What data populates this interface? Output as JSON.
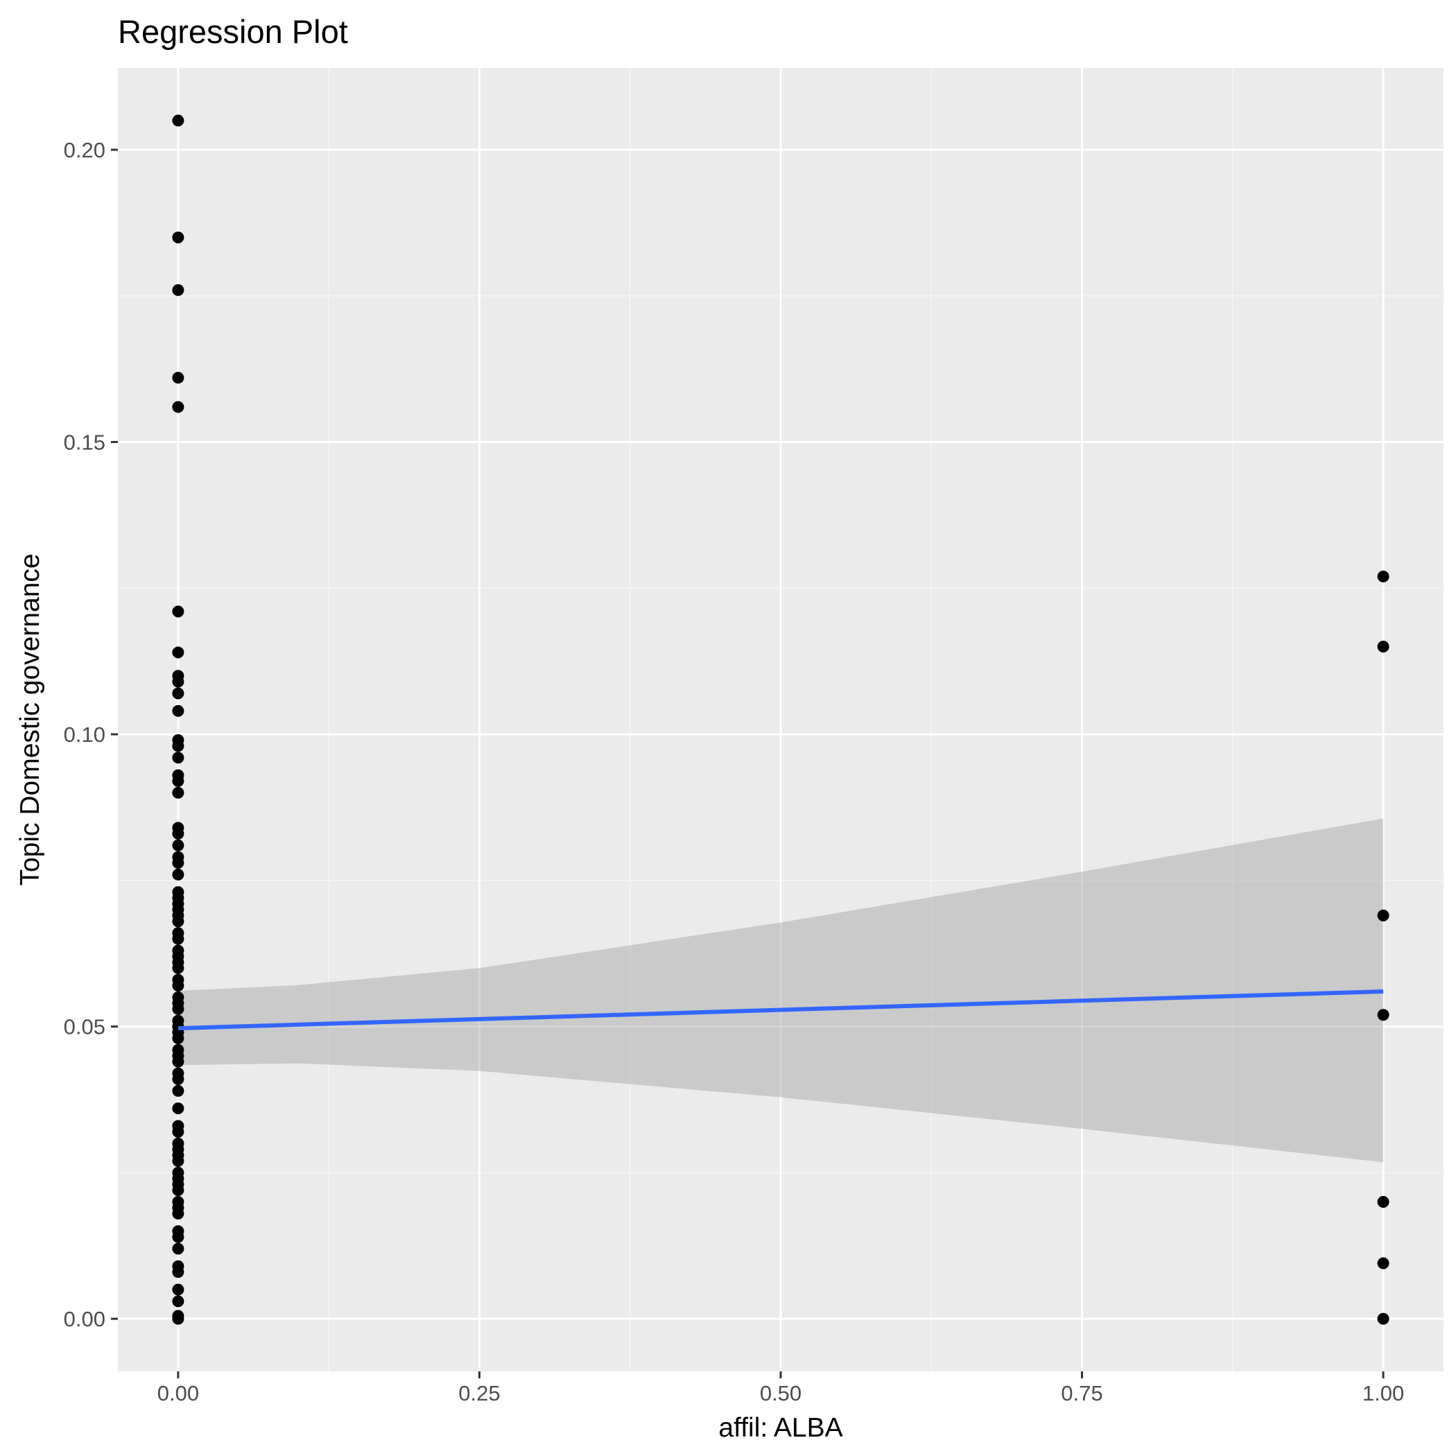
{
  "chart_data": {
    "type": "scatter",
    "title": "Regression Plot",
    "xlabel": "affil: ALBA",
    "ylabel": "Topic Domestic governance",
    "xlim": [
      -0.05,
      1.05
    ],
    "ylim": [
      -0.009,
      0.214
    ],
    "x_ticks": [
      0,
      0.25,
      0.5,
      0.75,
      1
    ],
    "x_tick_labels": [
      "0.00",
      "0.25",
      "0.50",
      "0.75",
      "1.00"
    ],
    "y_ticks": [
      0,
      0.05,
      0.1,
      0.15,
      0.2
    ],
    "y_tick_labels": [
      "0.00",
      "0.05",
      "0.10",
      "0.15",
      "0.20"
    ],
    "grid": true,
    "points": [
      {
        "x": 0,
        "y": 0.205
      },
      {
        "x": 0,
        "y": 0.185
      },
      {
        "x": 0,
        "y": 0.176
      },
      {
        "x": 0,
        "y": 0.161
      },
      {
        "x": 0,
        "y": 0.156
      },
      {
        "x": 0,
        "y": 0.121
      },
      {
        "x": 0,
        "y": 0.114
      },
      {
        "x": 0,
        "y": 0.11
      },
      {
        "x": 0,
        "y": 0.109
      },
      {
        "x": 0,
        "y": 0.107
      },
      {
        "x": 0,
        "y": 0.104
      },
      {
        "x": 0,
        "y": 0.099
      },
      {
        "x": 0,
        "y": 0.098
      },
      {
        "x": 0,
        "y": 0.096
      },
      {
        "x": 0,
        "y": 0.093
      },
      {
        "x": 0,
        "y": 0.092
      },
      {
        "x": 0,
        "y": 0.09
      },
      {
        "x": 0,
        "y": 0.084
      },
      {
        "x": 0,
        "y": 0.083
      },
      {
        "x": 0,
        "y": 0.081
      },
      {
        "x": 0,
        "y": 0.079
      },
      {
        "x": 0,
        "y": 0.078
      },
      {
        "x": 0,
        "y": 0.076
      },
      {
        "x": 0,
        "y": 0.073
      },
      {
        "x": 0,
        "y": 0.072
      },
      {
        "x": 0,
        "y": 0.071
      },
      {
        "x": 0,
        "y": 0.07
      },
      {
        "x": 0,
        "y": 0.069
      },
      {
        "x": 0,
        "y": 0.068
      },
      {
        "x": 0,
        "y": 0.066
      },
      {
        "x": 0,
        "y": 0.065
      },
      {
        "x": 0,
        "y": 0.063
      },
      {
        "x": 0,
        "y": 0.062
      },
      {
        "x": 0,
        "y": 0.061
      },
      {
        "x": 0,
        "y": 0.06
      },
      {
        "x": 0,
        "y": 0.058
      },
      {
        "x": 0,
        "y": 0.057
      },
      {
        "x": 0,
        "y": 0.055
      },
      {
        "x": 0,
        "y": 0.054
      },
      {
        "x": 0,
        "y": 0.053
      },
      {
        "x": 0,
        "y": 0.051
      },
      {
        "x": 0,
        "y": 0.05
      },
      {
        "x": 0,
        "y": 0.049
      },
      {
        "x": 0,
        "y": 0.048
      },
      {
        "x": 0,
        "y": 0.046
      },
      {
        "x": 0,
        "y": 0.045
      },
      {
        "x": 0,
        "y": 0.044
      },
      {
        "x": 0,
        "y": 0.042
      },
      {
        "x": 0,
        "y": 0.041
      },
      {
        "x": 0,
        "y": 0.039
      },
      {
        "x": 0,
        "y": 0.036
      },
      {
        "x": 0,
        "y": 0.033
      },
      {
        "x": 0,
        "y": 0.032
      },
      {
        "x": 0,
        "y": 0.03
      },
      {
        "x": 0,
        "y": 0.029
      },
      {
        "x": 0,
        "y": 0.028
      },
      {
        "x": 0,
        "y": 0.027
      },
      {
        "x": 0,
        "y": 0.025
      },
      {
        "x": 0,
        "y": 0.024
      },
      {
        "x": 0,
        "y": 0.023
      },
      {
        "x": 0,
        "y": 0.022
      },
      {
        "x": 0,
        "y": 0.02
      },
      {
        "x": 0,
        "y": 0.019
      },
      {
        "x": 0,
        "y": 0.018
      },
      {
        "x": 0,
        "y": 0.015
      },
      {
        "x": 0,
        "y": 0.014
      },
      {
        "x": 0,
        "y": 0.012
      },
      {
        "x": 0,
        "y": 0.009
      },
      {
        "x": 0,
        "y": 0.008
      },
      {
        "x": 0,
        "y": 0.005
      },
      {
        "x": 0,
        "y": 0.003
      },
      {
        "x": 0,
        "y": 0.0005
      },
      {
        "x": 0,
        "y": 0.0
      },
      {
        "x": 1,
        "y": 0.127
      },
      {
        "x": 1,
        "y": 0.115
      },
      {
        "x": 1,
        "y": 0.069
      },
      {
        "x": 1,
        "y": 0.052
      },
      {
        "x": 1,
        "y": 0.02
      },
      {
        "x": 1,
        "y": 0.0095
      },
      {
        "x": 1,
        "y": 0.0
      }
    ],
    "regression": {
      "method": "lm",
      "intercept": 0.0497,
      "slope": 0.0063,
      "x_range": [
        0,
        1
      ],
      "confidence_band": [
        {
          "x": 0,
          "lower": 0.0434,
          "upper": 0.0561
        },
        {
          "x": 0.1,
          "lower": 0.0437,
          "upper": 0.0571
        },
        {
          "x": 0.25,
          "lower": 0.0424,
          "upper": 0.06
        },
        {
          "x": 0.5,
          "lower": 0.0379,
          "upper": 0.0678
        },
        {
          "x": 0.75,
          "lower": 0.0325,
          "upper": 0.0765
        },
        {
          "x": 1,
          "lower": 0.0268,
          "upper": 0.0856
        }
      ]
    },
    "colors": {
      "panel_background": "#ebebeb",
      "grid_major": "#ffffff",
      "grid_minor": "#f5f5f5",
      "points": "#000000",
      "line": "#3366ff",
      "ribbon": "#999999"
    }
  }
}
